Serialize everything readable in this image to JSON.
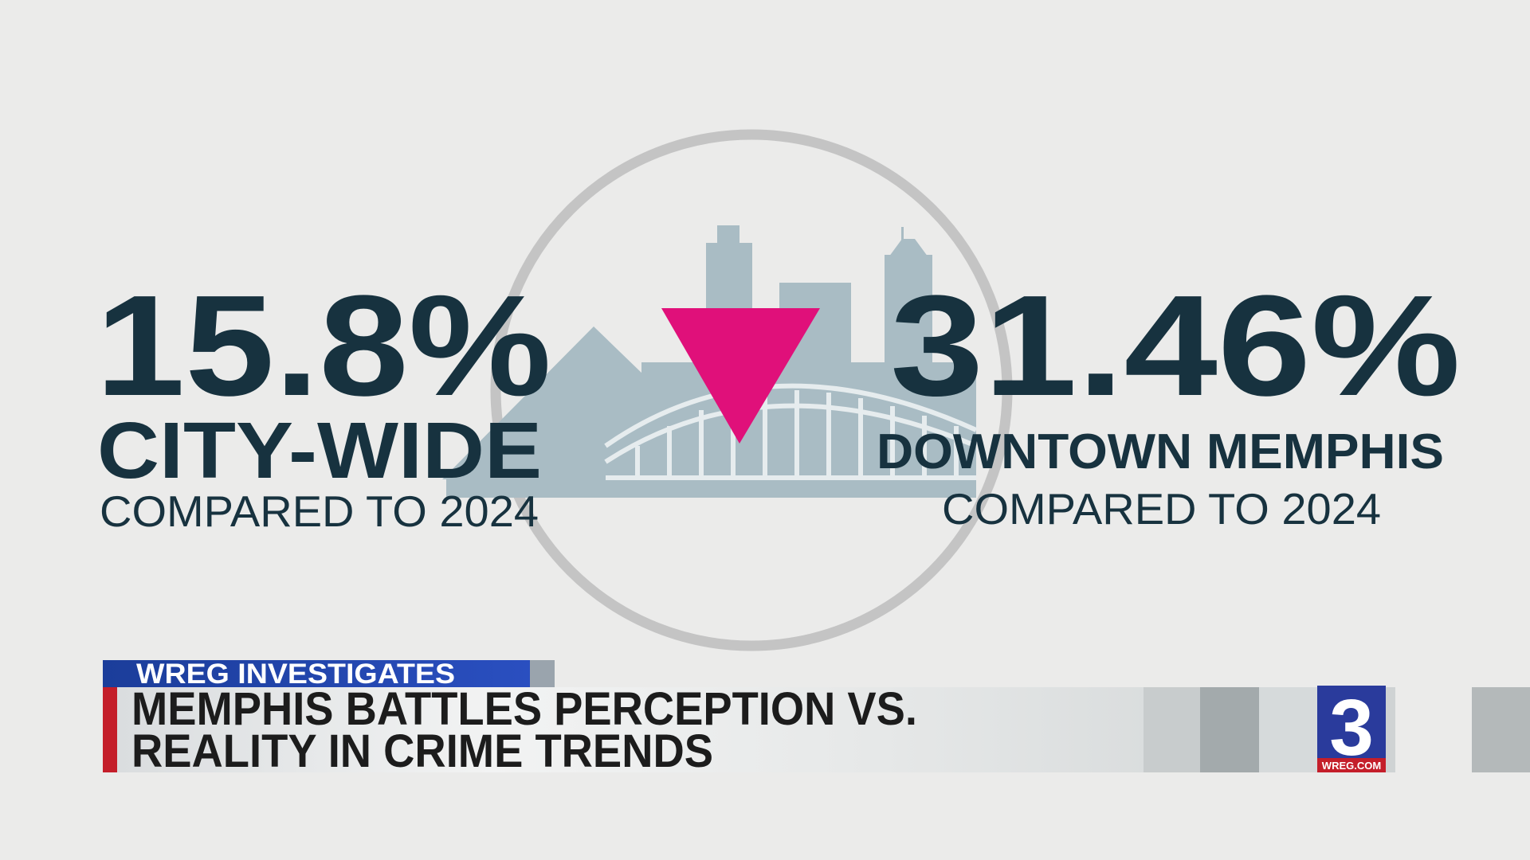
{
  "stats": [
    {
      "figure": "15.8%",
      "label": "CITY-WIDE",
      "comparison": "COMPARED TO 2024"
    },
    {
      "figure": "31.46%",
      "label": "DOWNTOWN MEMPHIS",
      "comparison": "COMPARED TO 2024"
    }
  ],
  "lower_third": {
    "tag": "WREG INVESTIGATES",
    "headline": [
      "MEMPHIS BATTLES PERCEPTION VS.",
      "REALITY IN CRIME TRENDS"
    ]
  },
  "logo": {
    "number": "3",
    "site": "WREG.COM"
  }
}
